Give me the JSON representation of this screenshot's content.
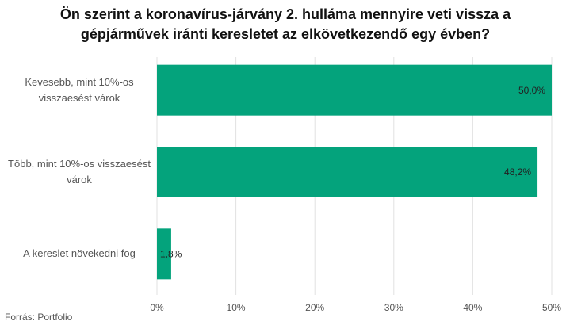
{
  "chart_data": {
    "type": "bar",
    "orientation": "horizontal",
    "title": "Ön szerint a koronavírus-járvány 2. hulláma mennyire veti vissza a gépjárművek iránti keresletet az elkövetkezendő egy évben?",
    "categories": [
      "Kevesebb, mint 10%-os visszaesést várok",
      "Több, mint 10%-os visszaesést várok",
      "A kereslet növekedni fog"
    ],
    "values": [
      50.0,
      48.2,
      1.8
    ],
    "value_labels": [
      "50,0%",
      "48,2%",
      "1,8%"
    ],
    "color": "#04a37c",
    "xlim": [
      0,
      50
    ],
    "xticks": [
      {
        "value": 0,
        "label": "0%"
      },
      {
        "value": 10,
        "label": "10%"
      },
      {
        "value": 20,
        "label": "20%"
      },
      {
        "value": 30,
        "label": "30%"
      },
      {
        "value": 40,
        "label": "40%"
      },
      {
        "value": 50,
        "label": "50%"
      }
    ],
    "grid": true,
    "source": "Forrás: Portfolio"
  }
}
